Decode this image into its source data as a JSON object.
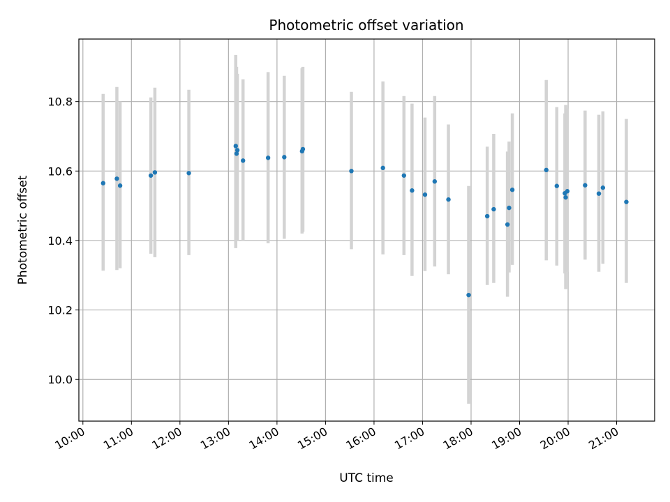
{
  "chart_data": {
    "type": "scatter",
    "title": "Photometric offset variation",
    "xlabel": "UTC time",
    "ylabel": "Photometric offset",
    "x_ticks": [
      "10:00",
      "11:00",
      "12:00",
      "13:00",
      "14:00",
      "15:00",
      "16:00",
      "17:00",
      "18:00",
      "19:00",
      "20:00",
      "21:00"
    ],
    "y_ticks": [
      "10.0",
      "10.2",
      "10.4",
      "10.6",
      "10.8"
    ],
    "xlim": [
      "09:55",
      "21:47"
    ],
    "ylim": [
      9.88,
      10.98
    ],
    "grid": true,
    "errorbar_color": "#d3d3d3",
    "point_color": "#1f77b4",
    "points": [
      {
        "x": "10:25",
        "y": 10.565,
        "lo": 10.313,
        "hi": 10.822
      },
      {
        "x": "10:42",
        "y": 10.578,
        "lo": 10.315,
        "hi": 10.842
      },
      {
        "x": "10:46",
        "y": 10.558,
        "lo": 10.32,
        "hi": 10.8
      },
      {
        "x": "11:24",
        "y": 10.587,
        "lo": 10.362,
        "hi": 10.812
      },
      {
        "x": "11:29",
        "y": 10.596,
        "lo": 10.352,
        "hi": 10.84
      },
      {
        "x": "12:11",
        "y": 10.594,
        "lo": 10.358,
        "hi": 10.834
      },
      {
        "x": "13:09",
        "y": 10.672,
        "lo": 10.378,
        "hi": 10.934
      },
      {
        "x": "13:10",
        "y": 10.65,
        "lo": 10.41,
        "hi": 10.9
      },
      {
        "x": "13:11",
        "y": 10.66,
        "lo": 10.4,
        "hi": 10.88
      },
      {
        "x": "13:18",
        "y": 10.63,
        "lo": 10.4,
        "hi": 10.864
      },
      {
        "x": "13:49",
        "y": 10.638,
        "lo": 10.392,
        "hi": 10.885
      },
      {
        "x": "14:09",
        "y": 10.64,
        "lo": 10.405,
        "hi": 10.874
      },
      {
        "x": "14:31",
        "y": 10.657,
        "lo": 10.42,
        "hi": 10.896
      },
      {
        "x": "14:32",
        "y": 10.663,
        "lo": 10.425,
        "hi": 10.9
      },
      {
        "x": "15:32",
        "y": 10.6,
        "lo": 10.375,
        "hi": 10.828
      },
      {
        "x": "16:11",
        "y": 10.609,
        "lo": 10.36,
        "hi": 10.858
      },
      {
        "x": "16:37",
        "y": 10.587,
        "lo": 10.358,
        "hi": 10.816
      },
      {
        "x": "16:47",
        "y": 10.544,
        "lo": 10.298,
        "hi": 10.794
      },
      {
        "x": "17:03",
        "y": 10.532,
        "lo": 10.312,
        "hi": 10.754
      },
      {
        "x": "17:15",
        "y": 10.57,
        "lo": 10.325,
        "hi": 10.816
      },
      {
        "x": "17:32",
        "y": 10.518,
        "lo": 10.303,
        "hi": 10.734
      },
      {
        "x": "17:57",
        "y": 10.243,
        "lo": 9.93,
        "hi": 10.557
      },
      {
        "x": "18:20",
        "y": 10.47,
        "lo": 10.272,
        "hi": 10.67
      },
      {
        "x": "18:28",
        "y": 10.49,
        "lo": 10.278,
        "hi": 10.707
      },
      {
        "x": "18:45",
        "y": 10.446,
        "lo": 10.238,
        "hi": 10.656
      },
      {
        "x": "18:47",
        "y": 10.494,
        "lo": 10.308,
        "hi": 10.685
      },
      {
        "x": "18:51",
        "y": 10.546,
        "lo": 10.33,
        "hi": 10.766
      },
      {
        "x": "19:33",
        "y": 10.603,
        "lo": 10.343,
        "hi": 10.862
      },
      {
        "x": "19:46",
        "y": 10.557,
        "lo": 10.328,
        "hi": 10.784
      },
      {
        "x": "19:56",
        "y": 10.536,
        "lo": 10.305,
        "hi": 10.766
      },
      {
        "x": "19:57",
        "y": 10.524,
        "lo": 10.26,
        "hi": 10.79
      },
      {
        "x": "19:59",
        "y": 10.542,
        "lo": 10.31,
        "hi": 10.78
      },
      {
        "x": "20:21",
        "y": 10.559,
        "lo": 10.345,
        "hi": 10.774
      },
      {
        "x": "20:38",
        "y": 10.535,
        "lo": 10.31,
        "hi": 10.762
      },
      {
        "x": "20:43",
        "y": 10.552,
        "lo": 10.333,
        "hi": 10.772
      },
      {
        "x": "21:12",
        "y": 10.511,
        "lo": 10.278,
        "hi": 10.75
      }
    ]
  }
}
